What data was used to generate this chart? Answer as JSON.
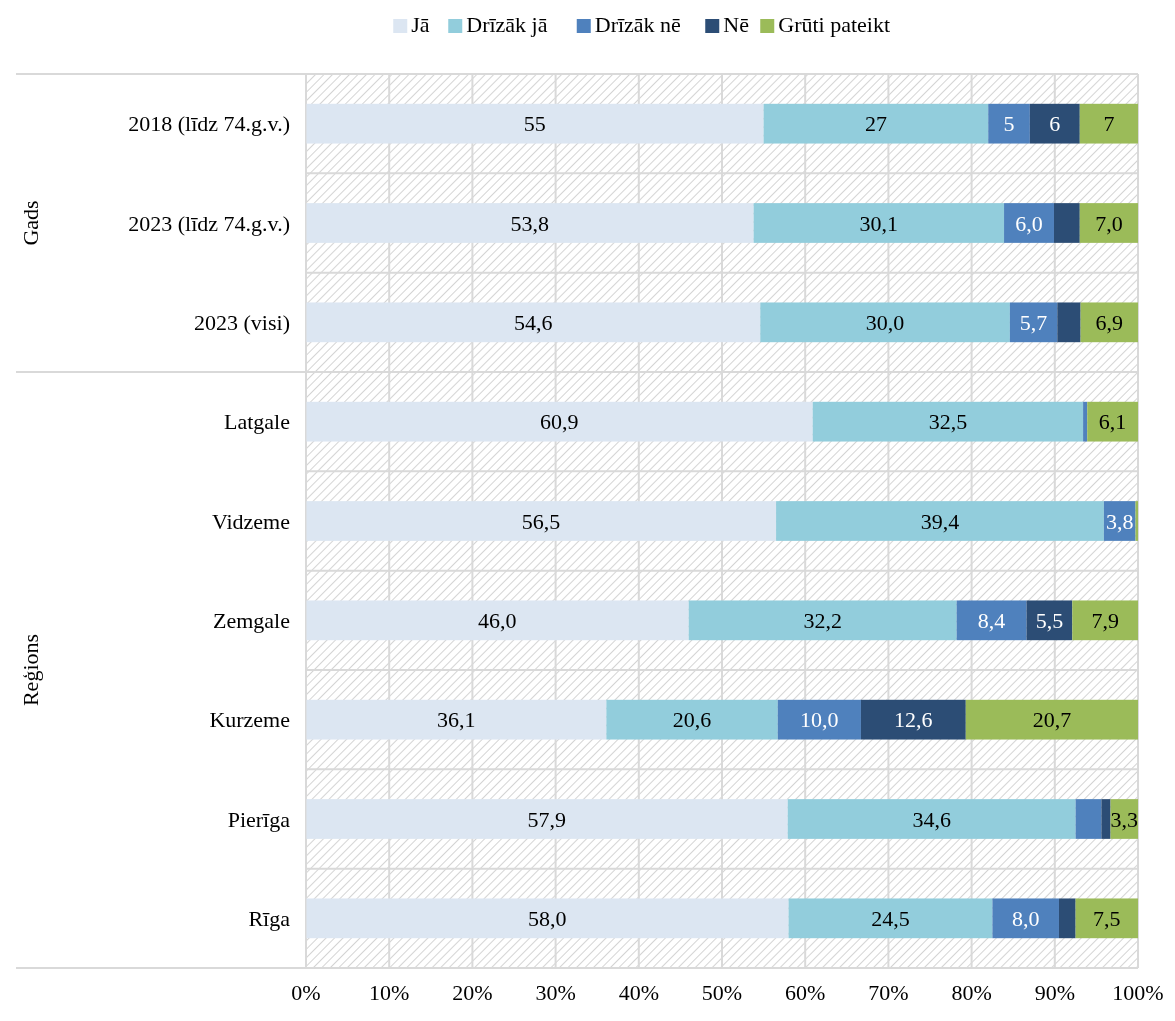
{
  "chart_data": {
    "type": "bar",
    "orientation": "horizontal",
    "stacked": true,
    "categories": [
      "2018 (līdz 74.g.v.)",
      "2023 (līdz 74.g.v.)",
      "2023 (visi)",
      "Latgale",
      "Vidzeme",
      "Zemgale",
      "Kurzeme",
      "Pierīga",
      "Rīga"
    ],
    "series": [
      {
        "name": "Jā",
        "color": "#dce6f2",
        "values": [
          55,
          53.8,
          54.6,
          60.9,
          56.5,
          46.0,
          36.1,
          57.9,
          58.0
        ],
        "value_labels": [
          "55",
          "53,8",
          "54,6",
          "60,9",
          "56,5",
          "46,0",
          "36,1",
          "57,9",
          "58,0"
        ]
      },
      {
        "name": "Drīzāk jā",
        "color": "#92cddc",
        "values": [
          27,
          30.1,
          30.0,
          32.5,
          39.4,
          32.2,
          20.6,
          34.6,
          24.5
        ],
        "value_labels": [
          "27",
          "30,1",
          "30,0",
          "32,5",
          "39,4",
          "32,2",
          "20,6",
          "34,6",
          "24,5"
        ]
      },
      {
        "name": "Drīzāk nē",
        "color": "#4f81bd",
        "values": [
          5,
          6.0,
          5.7,
          0.5,
          3.8,
          8.4,
          10.0,
          3.1,
          8.0
        ],
        "value_labels": [
          "5",
          "6,0",
          "5,7",
          null,
          "3,8",
          "8,4",
          "10,0",
          null,
          "8,0"
        ]
      },
      {
        "name": "Nē",
        "color": "#2c4d75",
        "values": [
          6,
          3.1,
          2.8,
          0,
          0,
          5.5,
          12.6,
          1.1,
          2.0
        ],
        "value_labels": [
          "6",
          null,
          null,
          null,
          null,
          "5,5",
          "12,6",
          null,
          null
        ]
      },
      {
        "name": "Grūti pateikt",
        "color": "#9bbb59",
        "values": [
          7,
          7.0,
          6.9,
          6.1,
          0.3,
          7.9,
          20.7,
          3.3,
          7.5
        ],
        "value_labels": [
          "7",
          "7,0",
          "6,9",
          "6,1",
          null,
          "7,9",
          "20,7",
          "3,3",
          "7,5"
        ]
      }
    ],
    "xlim": [
      0,
      100
    ],
    "xticks": [
      {
        "value": 0,
        "label": "0%"
      },
      {
        "value": 10,
        "label": "10%"
      },
      {
        "value": 20,
        "label": "20%"
      },
      {
        "value": 30,
        "label": "30%"
      },
      {
        "value": 40,
        "label": "40%"
      },
      {
        "value": 50,
        "label": "50%"
      },
      {
        "value": 60,
        "label": "60%"
      },
      {
        "value": 70,
        "label": "70%"
      },
      {
        "value": 80,
        "label": "80%"
      },
      {
        "value": 90,
        "label": "90%"
      },
      {
        "value": 100,
        "label": "100%"
      }
    ],
    "annotations": [
      "Gads",
      "Reģions"
    ],
    "grid": true,
    "legend": "top"
  }
}
